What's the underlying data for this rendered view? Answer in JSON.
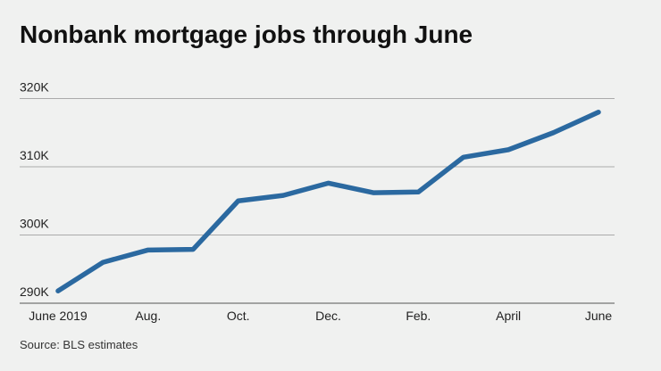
{
  "chart_data": {
    "type": "line",
    "title": "Nonbank mortgage jobs through June",
    "source": "Source: BLS estimates",
    "categories": [
      "June 2019",
      null,
      "Aug.",
      null,
      "Oct.",
      null,
      "Dec.",
      null,
      "Feb.",
      null,
      "April",
      null,
      "June"
    ],
    "series": [
      {
        "name": "Nonbank mortgage jobs",
        "color": "#2b69a0",
        "values": [
          291.8,
          296.0,
          297.8,
          297.9,
          305.0,
          305.8,
          307.6,
          306.2,
          306.3,
          311.4,
          312.5,
          315.0,
          318.0
        ]
      }
    ],
    "ylim": [
      290,
      323
    ],
    "yticks": [
      {
        "value": 290,
        "label": "290K"
      },
      {
        "value": 300,
        "label": "300K"
      },
      {
        "value": 310,
        "label": "310K"
      },
      {
        "value": 320,
        "label": "320K"
      }
    ],
    "grid": true
  }
}
